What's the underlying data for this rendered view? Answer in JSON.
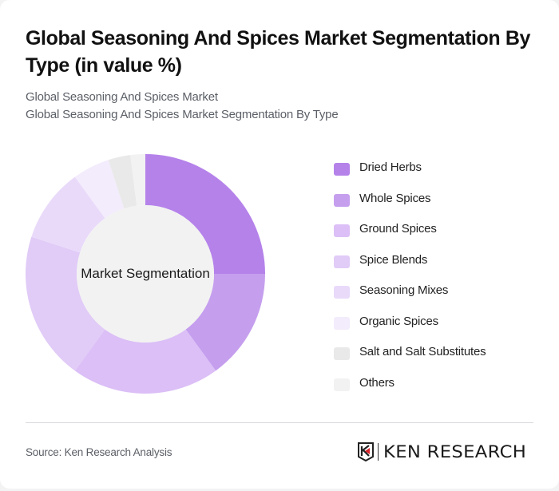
{
  "header": {
    "title": "Global Seasoning And Spices Market Segmentation By Type (in value %)",
    "subtitle_line1": "Global Seasoning And Spices Market",
    "subtitle_line2": "Global Seasoning And Spices Market Segmentation By Type"
  },
  "chart": {
    "center_label": "Market Segmentation"
  },
  "legend": {
    "items": [
      {
        "label": "Dried Herbs",
        "color": "#b582ea"
      },
      {
        "label": "Whole Spices",
        "color": "#c59fee"
      },
      {
        "label": "Ground Spices",
        "color": "#dbbff6"
      },
      {
        "label": "Spice Blends",
        "color": "#e1cbf7"
      },
      {
        "label": "Seasoning Mixes",
        "color": "#e9dafa"
      },
      {
        "label": "Organic Spices",
        "color": "#f3ecfc"
      },
      {
        "label": "Salt and Salt Substitutes",
        "color": "#e9e9e9"
      },
      {
        "label": "Others",
        "color": "#f2f2f2"
      }
    ]
  },
  "footer": {
    "source": "Source: Ken Research Analysis",
    "logo_text": "KEN RESEARCH"
  },
  "chart_data": {
    "type": "pie",
    "variant": "donut",
    "title": "Global Seasoning And Spices Market Segmentation By Type (in value %)",
    "center_label": "Market Segmentation",
    "categories": [
      "Dried Herbs",
      "Whole Spices",
      "Ground Spices",
      "Spice Blends",
      "Seasoning Mixes",
      "Organic Spices",
      "Salt and Salt Substitutes",
      "Others"
    ],
    "values": [
      25,
      15,
      20,
      20,
      10,
      5,
      3,
      2
    ],
    "colors": [
      "#b582ea",
      "#c59fee",
      "#dbbff6",
      "#e1cbf7",
      "#e9dafa",
      "#f3ecfc",
      "#e9e9e9",
      "#f2f2f2"
    ],
    "unit": "%",
    "legend_position": "right",
    "start_angle_deg": 0,
    "direction": "clockwise"
  }
}
